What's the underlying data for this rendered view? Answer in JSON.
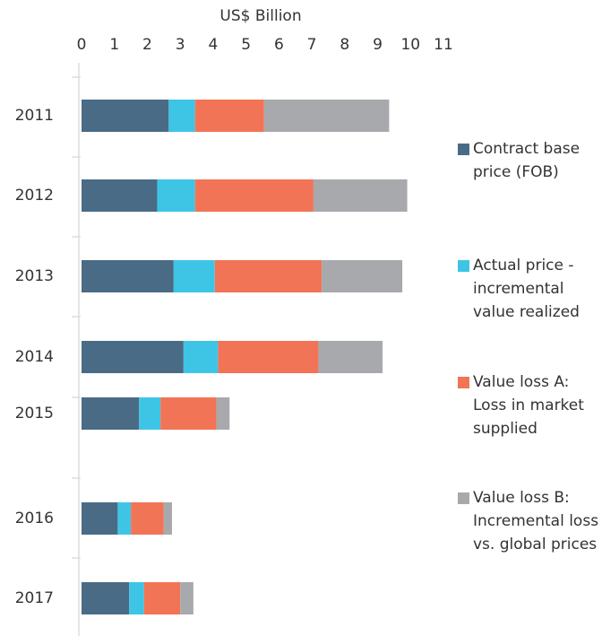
{
  "chart_data": {
    "type": "stacked_barh",
    "xlabel": "US$ Billion",
    "categories": [
      "2011",
      "2012",
      "2013",
      "2014",
      "2015",
      "2016",
      "2017"
    ],
    "series": [
      {
        "name": "Contract base price (FOB)",
        "color": "#4a6b85",
        "values": [
          2.65,
          2.3,
          2.8,
          3.1,
          1.75,
          1.1,
          1.45
        ]
      },
      {
        "name": "Actual price - incremental value realized",
        "color": "#3ec5e6",
        "values": [
          0.8,
          1.15,
          1.25,
          1.05,
          0.65,
          0.4,
          0.45
        ]
      },
      {
        "name": "Value loss A: Loss in market supplied",
        "color": "#f27456",
        "values": [
          2.1,
          3.6,
          3.25,
          3.05,
          1.7,
          1.0,
          1.1
        ]
      },
      {
        "name": "Value loss B: Incremental loss vs. global prices",
        "color": "#a7a9ac",
        "values": [
          3.8,
          2.85,
          2.45,
          1.95,
          0.4,
          0.25,
          0.4
        ]
      }
    ],
    "xlim": [
      0,
      11
    ],
    "xticks": [
      0,
      1,
      2,
      3,
      4,
      5,
      6,
      7,
      8,
      9,
      10,
      11
    ],
    "legend": "right"
  }
}
